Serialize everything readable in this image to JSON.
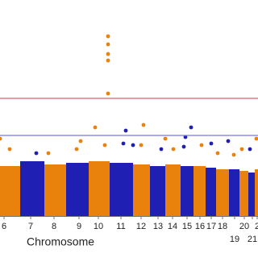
{
  "chart_data": {
    "type": "manhattan",
    "xlabel": "Chromosome",
    "xlim": [
      0,
      320
    ],
    "ylim": [
      0,
      13.4
    ],
    "xticks": [
      {
        "value": 5,
        "label": "6"
      },
      {
        "value": 38,
        "label": "7"
      },
      {
        "value": 67,
        "label": "8"
      },
      {
        "value": 98,
        "label": "9"
      },
      {
        "value": 122,
        "label": "10"
      },
      {
        "value": 150,
        "label": "11"
      },
      {
        "value": 175,
        "label": "12"
      },
      {
        "value": 196,
        "label": "13"
      },
      {
        "value": 214,
        "label": "14"
      },
      {
        "value": 232,
        "label": "15"
      },
      {
        "value": 248,
        "label": "16"
      },
      {
        "value": 262,
        "label": "17"
      },
      {
        "value": 276,
        "label": "18"
      },
      {
        "value": 291,
        "label": "19"
      },
      {
        "value": 303,
        "label": "20"
      },
      {
        "value": 313,
        "label": "21"
      },
      {
        "value": 319,
        "label": "2"
      }
    ],
    "thresholds": [
      {
        "value": 7.3,
        "color": "#e35d6a"
      },
      {
        "value": 5,
        "color": "#7b7be0"
      }
    ],
    "bulk": [
      {
        "start": 0,
        "end": 25,
        "top": 3.1,
        "color": "#e8820c"
      },
      {
        "start": 25,
        "end": 55,
        "top": 3.4,
        "color": "#1f1fb4"
      },
      {
        "start": 55,
        "end": 82,
        "top": 3.2,
        "color": "#e8820c"
      },
      {
        "start": 82,
        "end": 110,
        "top": 3.3,
        "color": "#1f1fb4"
      },
      {
        "start": 110,
        "end": 136,
        "top": 3.4,
        "color": "#e8820c"
      },
      {
        "start": 136,
        "end": 165,
        "top": 3.3,
        "color": "#1f1fb4"
      },
      {
        "start": 165,
        "end": 186,
        "top": 3.2,
        "color": "#e8820c"
      },
      {
        "start": 186,
        "end": 205,
        "top": 3.1,
        "color": "#1f1fb4"
      },
      {
        "start": 205,
        "end": 224,
        "top": 3.2,
        "color": "#e8820c"
      },
      {
        "start": 224,
        "end": 240,
        "top": 3.1,
        "color": "#1f1fb4"
      },
      {
        "start": 240,
        "end": 255,
        "top": 3.1,
        "color": "#e8820c"
      },
      {
        "start": 255,
        "end": 268,
        "top": 3.0,
        "color": "#1f1fb4"
      },
      {
        "start": 268,
        "end": 284,
        "top": 2.9,
        "color": "#e8820c"
      },
      {
        "start": 284,
        "end": 297,
        "top": 2.9,
        "color": "#1f1fb4"
      },
      {
        "start": 297,
        "end": 308,
        "top": 2.8,
        "color": "#e8820c"
      },
      {
        "start": 308,
        "end": 316,
        "top": 2.7,
        "color": "#1f1fb4"
      },
      {
        "start": 316,
        "end": 320,
        "top": 2.9,
        "color": "#e8820c"
      }
    ],
    "series": [
      {
        "color": "#e8820c",
        "x": [
          134,
          134,
          134,
          134,
          134,
          118,
          178,
          0,
          100,
          12,
          60,
          95,
          130,
          175,
          205,
          215,
          250,
          270,
          300,
          318,
          290
        ],
        "y": [
          11.15,
          10.65,
          10.05,
          9.65,
          7.6,
          5.5,
          5.65,
          4.8,
          4.65,
          4.15,
          3.9,
          4.15,
          4.4,
          4.4,
          4.8,
          4.15,
          4.4,
          3.9,
          4.15,
          4.8,
          3.8
        ]
      },
      {
        "color": "#1f1fb4",
        "x": [
          156,
          237,
          153,
          165,
          200,
          230,
          262,
          45,
          228,
          283,
          310
        ],
        "y": [
          5.3,
          5.5,
          4.5,
          4.4,
          4.15,
          4.9,
          4.5,
          3.9,
          4.3,
          4.65,
          4.15
        ]
      }
    ]
  }
}
